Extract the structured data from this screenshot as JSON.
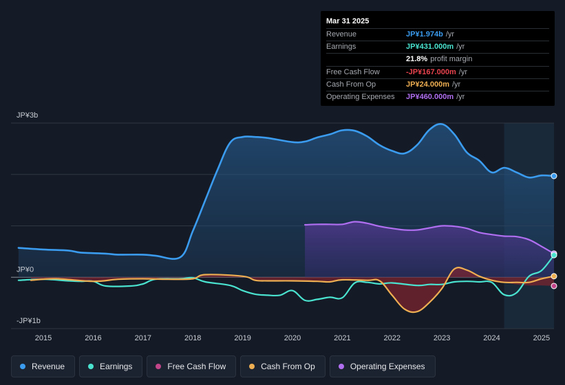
{
  "tooltip": {
    "date": "Mar 31 2025",
    "rows": [
      {
        "label": "Revenue",
        "value": "JP¥1.974b",
        "unit": "/yr",
        "color": "#3b9cef"
      },
      {
        "label": "Earnings",
        "value": "JP¥431.000m",
        "unit": "/yr",
        "color": "#4ae3d0"
      },
      {
        "label": "",
        "value": "21.8%",
        "unit": "profit margin",
        "color": "#ffffff"
      },
      {
        "label": "Free Cash Flow",
        "value": "-JP¥167.000m",
        "unit": "/yr",
        "color": "#e8434e"
      },
      {
        "label": "Cash From Op",
        "value": "JP¥24.000m",
        "unit": "/yr",
        "color": "#eeae52"
      },
      {
        "label": "Operating Expenses",
        "value": "JP¥460.000m",
        "unit": "/yr",
        "color": "#b06ff0"
      }
    ]
  },
  "chart_data": {
    "type": "area",
    "title": "",
    "xlabel": "",
    "ylabel": "",
    "y_unit": "JP¥ billions",
    "ylim": [
      -1.0,
      3.0
    ],
    "yticks": [
      {
        "value": 3,
        "label": "JP¥3b"
      },
      {
        "value": 0,
        "label": "JP¥0"
      },
      {
        "value": -1,
        "label": "-JP¥1b"
      }
    ],
    "xlim": [
      2014.35,
      2025.25
    ],
    "xticks": [
      "2015",
      "2016",
      "2017",
      "2018",
      "2019",
      "2020",
      "2021",
      "2022",
      "2023",
      "2024",
      "2025"
    ],
    "highlight_from": 2024.25,
    "series": [
      {
        "name": "Revenue",
        "color": "#3b9cef",
        "x": [
          2014.5,
          2015,
          2015.5,
          2015.75,
          2016.25,
          2016.5,
          2017,
          2017.25,
          2017.75,
          2018,
          2018.25,
          2018.5,
          2018.75,
          2019,
          2019.25,
          2019.5,
          2020,
          2020.25,
          2020.5,
          2020.75,
          2021,
          2021.25,
          2021.5,
          2021.75,
          2022,
          2022.25,
          2022.5,
          2022.75,
          2023,
          2023.25,
          2023.5,
          2023.75,
          2024,
          2024.25,
          2024.5,
          2024.75,
          2025,
          2025.25
        ],
        "values": [
          0.57,
          0.54,
          0.52,
          0.48,
          0.46,
          0.44,
          0.44,
          0.42,
          0.39,
          0.9,
          1.5,
          2.1,
          2.62,
          2.73,
          2.73,
          2.71,
          2.63,
          2.64,
          2.72,
          2.78,
          2.86,
          2.85,
          2.74,
          2.57,
          2.46,
          2.41,
          2.57,
          2.87,
          2.98,
          2.78,
          2.43,
          2.27,
          2.04,
          2.13,
          2.04,
          1.94,
          1.98,
          1.97
        ]
      },
      {
        "name": "Earnings",
        "color": "#4ae3d0",
        "x": [
          2014.5,
          2015,
          2015.5,
          2015.75,
          2016,
          2016.25,
          2016.75,
          2017,
          2017.25,
          2017.75,
          2018,
          2018.25,
          2018.75,
          2019,
          2019.25,
          2019.5,
          2019.75,
          2020,
          2020.25,
          2020.5,
          2020.75,
          2021,
          2021.25,
          2021.5,
          2021.75,
          2022,
          2022.5,
          2022.75,
          2023,
          2023.25,
          2023.5,
          2023.75,
          2024,
          2024.25,
          2024.5,
          2024.75,
          2025,
          2025.25
        ],
        "values": [
          -0.06,
          -0.04,
          -0.07,
          -0.08,
          -0.08,
          -0.17,
          -0.17,
          -0.13,
          -0.04,
          -0.03,
          -0.01,
          -0.09,
          -0.16,
          -0.26,
          -0.33,
          -0.35,
          -0.35,
          -0.26,
          -0.45,
          -0.43,
          -0.39,
          -0.4,
          -0.11,
          -0.1,
          -0.13,
          -0.11,
          -0.16,
          -0.14,
          -0.14,
          -0.09,
          -0.08,
          -0.09,
          -0.1,
          -0.34,
          -0.3,
          0.02,
          0.13,
          0.43
        ]
      },
      {
        "name": "Free Cash Flow",
        "color": "#e8434e",
        "x": [
          2014.75,
          2015.25,
          2016,
          2016.5,
          2017,
          2017.5,
          2018,
          2018.25,
          2019,
          2019.25,
          2019.5,
          2020,
          2020.5,
          2020.75,
          2021,
          2021.5,
          2021.75,
          2022,
          2022.25,
          2022.5,
          2022.75,
          2023,
          2023.25,
          2023.5,
          2023.75,
          2024,
          2024.25,
          2024.5,
          2024.75,
          2025,
          2025.25
        ],
        "values": [
          -0.06,
          -0.03,
          -0.08,
          -0.04,
          -0.03,
          -0.04,
          -0.03,
          0.05,
          0.02,
          -0.06,
          -0.07,
          -0.07,
          -0.08,
          -0.09,
          -0.05,
          -0.06,
          -0.07,
          -0.35,
          -0.62,
          -0.67,
          -0.49,
          -0.22,
          0.16,
          0.14,
          0.02,
          -0.06,
          -0.1,
          -0.14,
          -0.16,
          -0.16,
          -0.17
        ]
      },
      {
        "name": "Cash From Op",
        "color": "#eeae52",
        "x": [
          2014.75,
          2015.25,
          2016,
          2016.5,
          2017,
          2017.5,
          2018,
          2018.25,
          2019,
          2019.25,
          2019.5,
          2020,
          2020.5,
          2020.75,
          2021,
          2021.5,
          2021.75,
          2022,
          2022.25,
          2022.5,
          2022.75,
          2023,
          2023.25,
          2023.5,
          2023.75,
          2024,
          2024.25,
          2024.5,
          2024.75,
          2025,
          2025.25
        ],
        "values": [
          -0.06,
          -0.03,
          -0.08,
          -0.04,
          -0.03,
          -0.04,
          -0.03,
          0.05,
          0.02,
          -0.06,
          -0.07,
          -0.07,
          -0.08,
          -0.09,
          -0.05,
          -0.06,
          -0.07,
          -0.35,
          -0.62,
          -0.67,
          -0.49,
          -0.22,
          0.16,
          0.14,
          0.02,
          -0.06,
          -0.1,
          -0.1,
          -0.1,
          -0.03,
          0.02
        ]
      },
      {
        "name": "Operating Expenses",
        "color": "#b06ff0",
        "x": [
          2020.25,
          2020.5,
          2020.75,
          2021,
          2021.25,
          2021.5,
          2021.75,
          2022,
          2022.25,
          2022.5,
          2022.75,
          2023,
          2023.25,
          2023.5,
          2023.75,
          2024,
          2024.25,
          2024.5,
          2024.75,
          2025,
          2025.25
        ],
        "values": [
          1.02,
          1.03,
          1.03,
          1.03,
          1.08,
          1.05,
          0.99,
          0.95,
          0.92,
          0.92,
          0.96,
          1.0,
          0.99,
          0.95,
          0.87,
          0.83,
          0.8,
          0.79,
          0.73,
          0.6,
          0.46
        ]
      }
    ]
  },
  "legend": [
    {
      "label": "Revenue",
      "color": "#3b9cef"
    },
    {
      "label": "Earnings",
      "color": "#4ae3d0"
    },
    {
      "label": "Free Cash Flow",
      "color": "#c2458a"
    },
    {
      "label": "Cash From Op",
      "color": "#eeae52"
    },
    {
      "label": "Operating Expenses",
      "color": "#b06ff0"
    }
  ]
}
